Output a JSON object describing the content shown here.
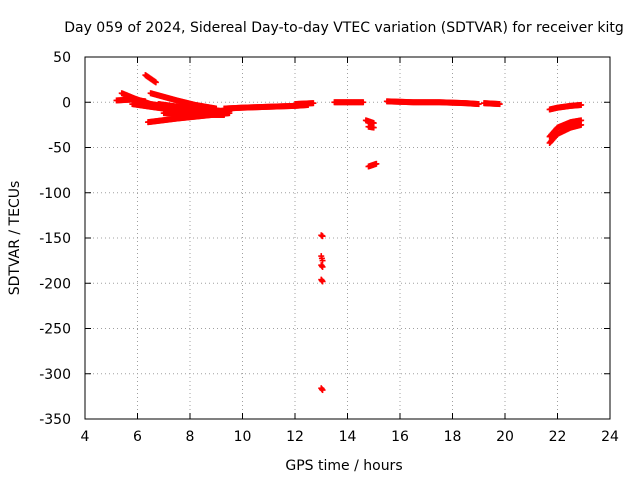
{
  "chart_data": {
    "type": "scatter",
    "title": "Day 059 of 2024, Sidereal Day-to-day VTEC variation (SDTVAR) for receiver kitg",
    "xlabel": "GPS time / hours",
    "ylabel": "SDTVAR / TECUs",
    "xlim": [
      4,
      24
    ],
    "ylim": [
      -350,
      50
    ],
    "xticks": [
      4,
      6,
      8,
      10,
      12,
      14,
      16,
      18,
      20,
      22,
      24
    ],
    "yticks": [
      50,
      0,
      -50,
      -100,
      -150,
      -200,
      -250,
      -300,
      -350
    ],
    "grid": true,
    "marker_color": "#ff0000",
    "series": [
      {
        "name": "SDTVAR",
        "segments": [
          {
            "x": [
              5.2,
              5.8,
              6.3
            ],
            "y": [
              2,
              3,
              1
            ]
          },
          {
            "x": [
              5.4,
              5.9,
              6.5,
              7.2,
              8.0,
              9.0
            ],
            "y": [
              10,
              4,
              -2,
              -5,
              -8,
              -9
            ]
          },
          {
            "x": [
              5.8,
              6.5,
              7.5,
              8.5,
              9.0
            ],
            "y": [
              -2,
              -5,
              -9,
              -12,
              -12
            ]
          },
          {
            "x": [
              6.3,
              6.7
            ],
            "y": [
              30,
              22
            ]
          },
          {
            "x": [
              6.5,
              7.5,
              8.2,
              9.0
            ],
            "y": [
              10,
              2,
              -3,
              -7
            ]
          },
          {
            "x": [
              6.4,
              7.5,
              8.5,
              9.5
            ],
            "y": [
              -22,
              -18,
              -15,
              -12
            ]
          },
          {
            "x": [
              6.8,
              7.8,
              8.8,
              9.5
            ],
            "y": [
              -2,
              -6,
              -9,
              -10
            ]
          },
          {
            "x": [
              7.0,
              8.0,
              9.0,
              9.3
            ],
            "y": [
              -12,
              -13,
              -14,
              -14
            ]
          },
          {
            "x": [
              8.5,
              9.0,
              9.3
            ],
            "y": [
              -10,
              -12,
              -13
            ]
          },
          {
            "x": [
              9.3,
              10.0,
              11.0,
              12.0,
              12.5
            ],
            "y": [
              -7,
              -6,
              -5,
              -4,
              -3
            ]
          },
          {
            "x": [
              12.0,
              12.7
            ],
            "y": [
              -2,
              -1
            ]
          },
          {
            "x": [
              13.0,
              13.05
            ],
            "y": [
              -147,
              -148
            ]
          },
          {
            "x": [
              13.0,
              13.05
            ],
            "y": [
              -170,
              -175
            ]
          },
          {
            "x": [
              13.0,
              13.05
            ],
            "y": [
              -180,
              -182
            ]
          },
          {
            "x": [
              13.0,
              13.05
            ],
            "y": [
              -196,
              -198
            ]
          },
          {
            "x": [
              13.0,
              13.05
            ],
            "y": [
              -316,
              -318
            ]
          },
          {
            "x": [
              13.5,
              14.0,
              14.6
            ],
            "y": [
              0,
              0,
              0
            ]
          },
          {
            "x": [
              14.7,
              15.0
            ],
            "y": [
              -20,
              -23
            ]
          },
          {
            "x": [
              14.8,
              15.0
            ],
            "y": [
              -27,
              -28
            ]
          },
          {
            "x": [
              14.8,
              15.1
            ],
            "y": [
              -71,
              -68
            ]
          },
          {
            "x": [
              15.5,
              16.5,
              17.5,
              18.5,
              19.0
            ],
            "y": [
              1,
              0,
              0,
              -1,
              -2
            ]
          },
          {
            "x": [
              19.2,
              19.8
            ],
            "y": [
              -1,
              -2
            ]
          },
          {
            "x": [
              21.7,
              22.0,
              22.5,
              22.9
            ],
            "y": [
              -8,
              -6,
              -4,
              -3
            ]
          },
          {
            "x": [
              21.7,
              22.0,
              22.5,
              22.9
            ],
            "y": [
              -38,
              -28,
              -22,
              -20
            ]
          },
          {
            "x": [
              21.7,
              22.0,
              22.5,
              22.9
            ],
            "y": [
              -45,
              -35,
              -28,
              -25
            ]
          }
        ]
      }
    ]
  }
}
